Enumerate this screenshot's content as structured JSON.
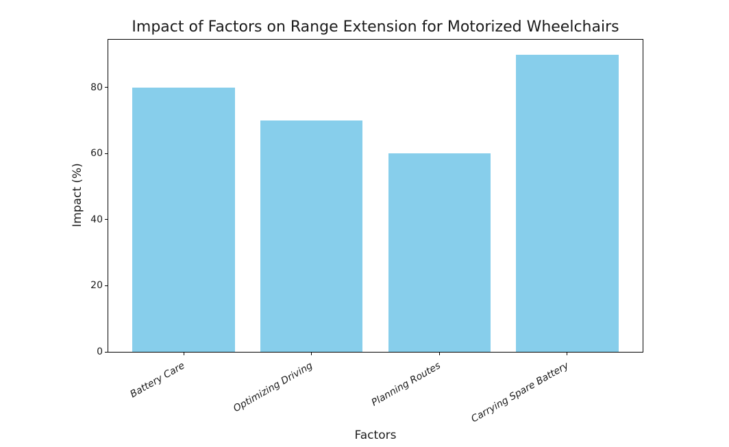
{
  "chart_data": {
    "type": "bar",
    "title": "Impact of Factors on Range Extension for Motorized Wheelchairs",
    "xlabel": "Factors",
    "ylabel": "Impact (%)",
    "categories": [
      "Battery Care",
      "Optimizing Driving",
      "Planning Routes",
      "Carrying Spare Battery"
    ],
    "values": [
      80,
      70,
      60,
      90
    ],
    "yticks": [
      0,
      20,
      40,
      60,
      80
    ],
    "ylim": [
      0,
      94.5
    ],
    "bar_color": "#87CEEB",
    "bar_width_fraction": 0.8,
    "x_tick_rotation_deg": 30,
    "x_tick_style": "italic",
    "grid": false,
    "legend": "none",
    "spine_color": "#000000",
    "background_color": "#ffffff"
  }
}
